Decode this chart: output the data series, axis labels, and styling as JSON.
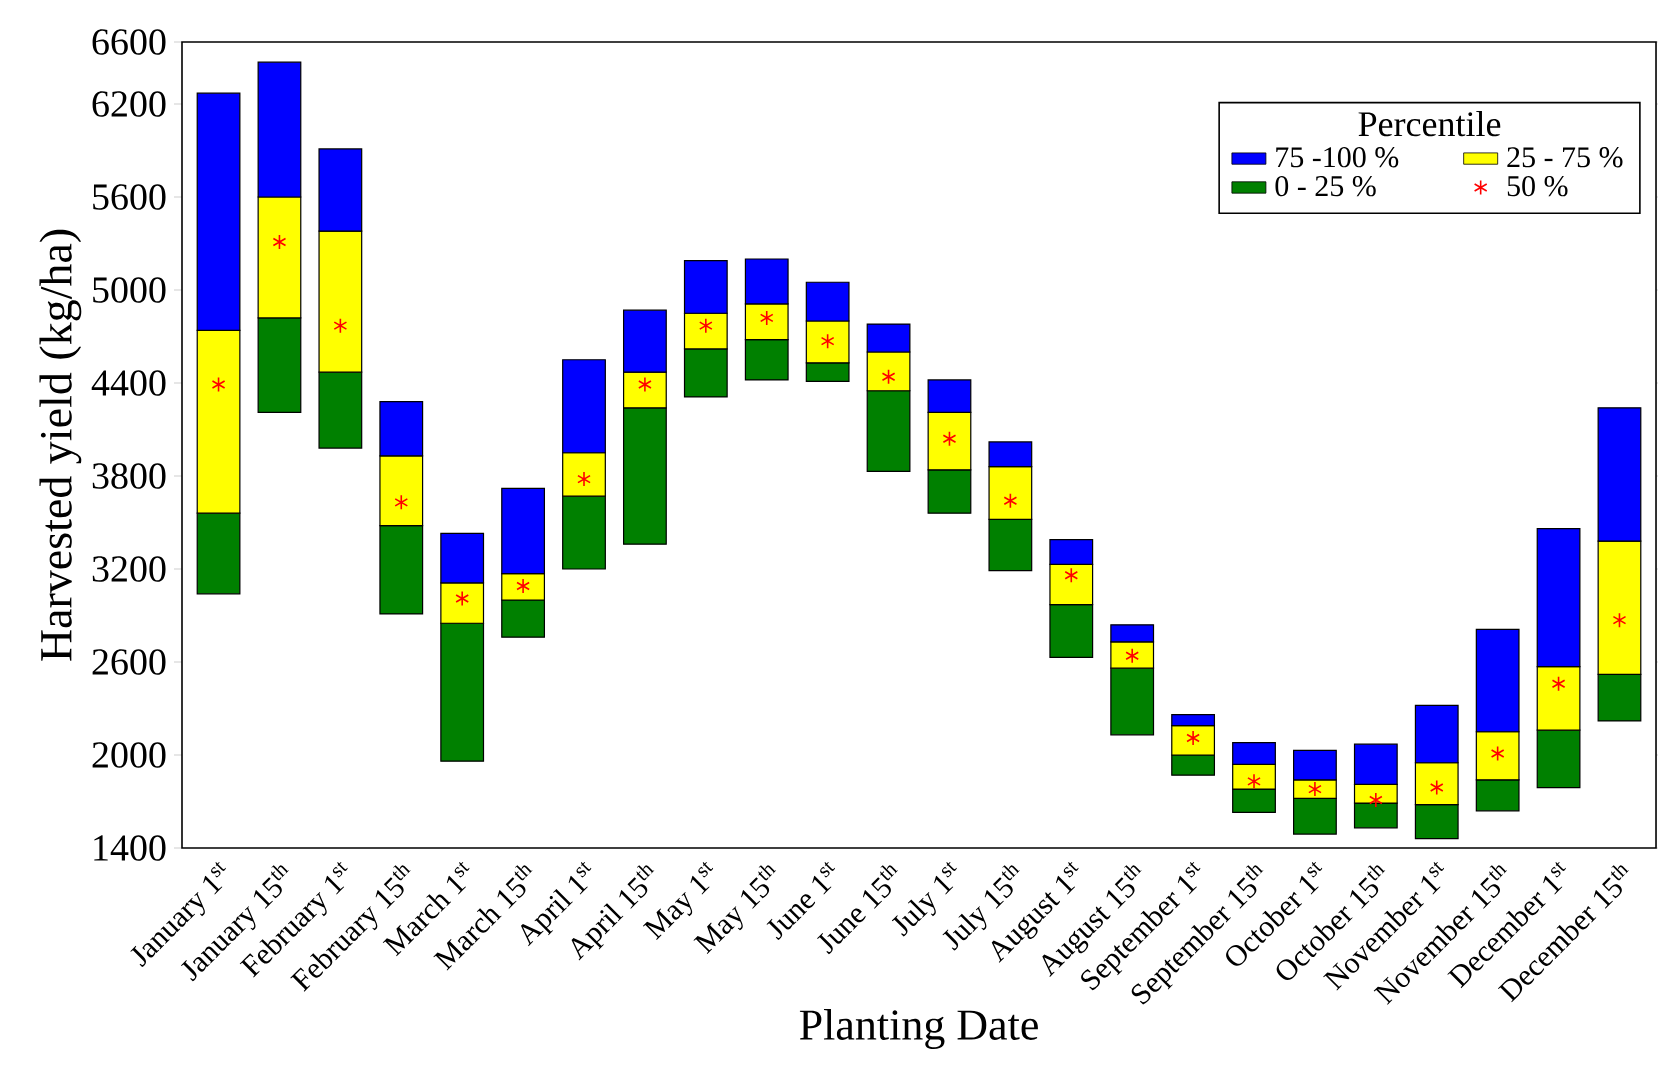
{
  "chart_data": {
    "type": "bar",
    "xlabel": "Planting Date",
    "ylabel": "Harvested yield (kg/ha)",
    "legend_title": "Percentile",
    "legend": "top right",
    "categories": [
      "January 1$^{st}$",
      "January 15$^{th}$",
      "February 1$^{st}$",
      "February 15$^{th}$",
      "March 1$^{st}$",
      "March 15$^{th}$",
      "April 1$^{st}$",
      "April 15$^{th}$",
      "May 1$^{st}$",
      "May 15$^{th}$",
      "June 1$^{st}$",
      "June 15$^{th}$",
      "July 1$^{st}$",
      "July 15$^{th}$",
      "August 1$^{st}$",
      "August 15$^{th}$",
      "September 1$^{st}$",
      "September 15$^{th}$",
      "October 1$^{st}$",
      "October 15$^{th}$",
      "November 1$^{st}$",
      "November 15$^{th}$",
      "December 1$^{st}$",
      "December 15$^{th}$"
    ],
    "series": [
      {
        "name": "0 - 25 %",
        "color": "#008000",
        "base": [
          3040,
          4210,
          3980,
          2910,
          1960,
          2760,
          3200,
          3360,
          4310,
          4420,
          4410,
          3830,
          3560,
          3190,
          2630,
          2130,
          1870,
          1630,
          1490,
          1530,
          1460,
          1640,
          1790,
          2220
        ],
        "values": [
          520,
          610,
          490,
          570,
          890,
          240,
          470,
          880,
          310,
          260,
          120,
          520,
          280,
          330,
          340,
          430,
          130,
          150,
          230,
          160,
          220,
          200,
          370,
          300
        ]
      },
      {
        "name": "25 - 75 %",
        "color": "#ffff00",
        "base": [
          3560,
          4820,
          4470,
          3480,
          2850,
          3000,
          3670,
          4240,
          4620,
          4680,
          4530,
          4350,
          3840,
          3520,
          2970,
          2560,
          2000,
          1780,
          1720,
          1690,
          1680,
          1840,
          2160,
          2520
        ],
        "values": [
          1180,
          780,
          910,
          450,
          260,
          170,
          280,
          230,
          230,
          230,
          270,
          250,
          370,
          340,
          260,
          170,
          190,
          160,
          120,
          120,
          270,
          310,
          410,
          860
        ]
      },
      {
        "name": "75 -100 %",
        "color": "#0000ff",
        "base": [
          4740,
          5600,
          5380,
          3930,
          3110,
          3170,
          3950,
          4470,
          4850,
          4910,
          4800,
          4600,
          4210,
          3860,
          3230,
          2730,
          2190,
          1940,
          1840,
          1810,
          1950,
          2150,
          2570,
          3380
        ],
        "values": [
          1530,
          870,
          530,
          350,
          320,
          550,
          600,
          400,
          340,
          290,
          250,
          180,
          210,
          160,
          160,
          110,
          70,
          140,
          190,
          260,
          370,
          660,
          890,
          860
        ]
      },
      {
        "name": "50 %",
        "type": "scatter",
        "marker": "cross",
        "color": "#ff0000",
        "x": [
          "January 1$^{st}$",
          "January 15$^{th}$",
          "February 1$^{st}$",
          "February 15$^{th}$",
          "March 1$^{st}$",
          "March 15$^{th}$",
          "April 1$^{st}$",
          "April 15$^{th}$",
          "May 1$^{st}$",
          "May 15$^{th}$",
          "June 1$^{st}$",
          "June 15$^{th}$",
          "July 1$^{st}$",
          "July 15$^{th}$",
          "August 1$^{st}$",
          "August 15$^{th}$",
          "September 1$^{st}$",
          "September 15$^{th}$",
          "October 1$^{st}$",
          "October 15$^{th}$",
          "November 1$^{st}$",
          "November 15$^{th}$",
          "December 1$^{st}$",
          "December 15$^{th}$"
        ],
        "values": [
          4390,
          5310,
          4770,
          3630,
          3010,
          3090,
          3780,
          4390,
          4770,
          4820,
          4670,
          4440,
          4040,
          3640,
          3160,
          2640,
          2110,
          1830,
          1780,
          1710,
          1790,
          2010,
          2460,
          2870
        ]
      }
    ],
    "ylim": [
      1400,
      6600
    ],
    "yticks": [
      1400,
      2000,
      2600,
      3200,
      3800,
      4400,
      5000,
      5600,
      6200,
      6600
    ]
  }
}
